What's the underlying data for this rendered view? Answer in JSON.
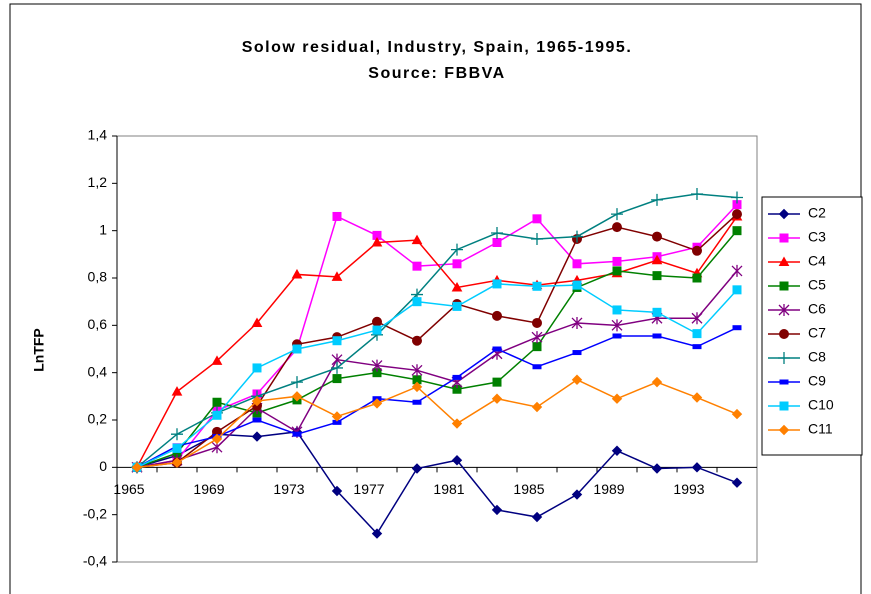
{
  "chart_data": {
    "type": "line",
    "title": "Solow residual, Industry, Spain, 1965-1995.",
    "subtitle": "Source: FBBVA",
    "y_label": "LnTFP",
    "categories": [
      "1965",
      null,
      "1969",
      null,
      "1973",
      null,
      "1977",
      null,
      "1981",
      null,
      "1985",
      null,
      "1989",
      null,
      "1993",
      null
    ],
    "ylim": [
      -0.4,
      1.4
    ],
    "yticks": [
      {
        "value": -0.4,
        "label": "-0,4"
      },
      {
        "value": -0.2,
        "label": "-0,2"
      },
      0,
      {
        "value": 0.2,
        "label": "0,2"
      },
      {
        "value": 0.4,
        "label": "0,4"
      },
      {
        "value": 0.6,
        "label": "0,6"
      },
      {
        "value": 0.8,
        "label": "0,8"
      },
      1,
      {
        "value": 1.2,
        "label": "1,2"
      },
      {
        "value": 1.4,
        "label": "1,4"
      }
    ],
    "legend": "right",
    "series": [
      {
        "name": "C2",
        "color": "#000080",
        "marker": "diamond",
        "values": [
          0,
          0.05,
          0.14,
          0.13,
          0.15,
          -0.1,
          -0.28,
          -0.005,
          0.03,
          -0.18,
          -0.21,
          -0.115,
          0.07,
          -0.005,
          0,
          -0.065
        ]
      },
      {
        "name": "C3",
        "color": "#ff00ff",
        "marker": "square",
        "values": [
          0,
          0.03,
          0.24,
          0.31,
          0.5,
          1.06,
          0.98,
          0.85,
          0.86,
          0.95,
          1.05,
          0.86,
          0.87,
          0.89,
          0.93,
          1.11
        ]
      },
      {
        "name": "C4",
        "color": "#ff0000",
        "marker": "triangle",
        "values": [
          0,
          0.32,
          0.45,
          0.61,
          0.815,
          0.805,
          0.95,
          0.96,
          0.76,
          0.79,
          0.77,
          0.79,
          0.82,
          0.875,
          0.82,
          1.06
        ]
      },
      {
        "name": "C5",
        "color": "#008000",
        "marker": "square",
        "values": [
          0,
          0.06,
          0.275,
          0.23,
          0.285,
          0.375,
          0.4,
          0.37,
          0.33,
          0.36,
          0.51,
          0.76,
          0.83,
          0.81,
          0.8,
          1.0
        ]
      },
      {
        "name": "C6",
        "color": "#800080",
        "marker": "star",
        "values": [
          0,
          0.03,
          0.085,
          0.25,
          0.15,
          0.455,
          0.43,
          0.41,
          0.36,
          0.48,
          0.55,
          0.61,
          0.6,
          0.63,
          0.63,
          0.83
        ]
      },
      {
        "name": "C7",
        "color": "#800000",
        "marker": "circle",
        "values": [
          0,
          0.02,
          0.15,
          0.26,
          0.52,
          0.55,
          0.615,
          0.535,
          0.69,
          0.64,
          0.61,
          0.965,
          1.015,
          0.975,
          0.915,
          1.07
        ]
      },
      {
        "name": "C8",
        "color": "#008080",
        "marker": "plus",
        "values": [
          0,
          0.14,
          0.23,
          0.3,
          0.36,
          0.42,
          0.56,
          0.73,
          0.92,
          0.99,
          0.965,
          0.975,
          1.07,
          1.13,
          1.155,
          1.14
        ]
      },
      {
        "name": "C9",
        "color": "#0000ff",
        "marker": "dash",
        "values": [
          0,
          0.09,
          0.13,
          0.2,
          0.14,
          0.19,
          0.29,
          0.275,
          0.38,
          0.5,
          0.425,
          0.485,
          0.555,
          0.555,
          0.51,
          0.59
        ]
      },
      {
        "name": "C10",
        "color": "#00ccff",
        "marker": "square",
        "values": [
          0,
          0.08,
          0.22,
          0.42,
          0.5,
          0.535,
          0.58,
          0.7,
          0.68,
          0.775,
          0.765,
          0.77,
          0.665,
          0.655,
          0.565,
          0.75
        ]
      },
      {
        "name": "C11",
        "color": "#ff8000",
        "marker": "diamond",
        "values": [
          0,
          0.02,
          0.12,
          0.28,
          0.3,
          0.215,
          0.27,
          0.34,
          0.185,
          0.29,
          0.255,
          0.37,
          0.29,
          0.36,
          0.295,
          0.225
        ]
      }
    ]
  }
}
